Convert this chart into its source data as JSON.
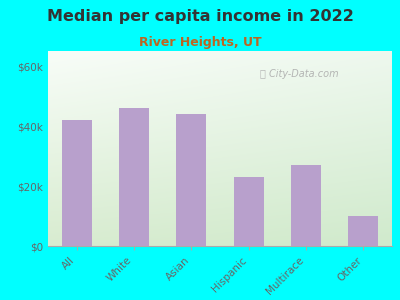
{
  "title": "Median per capita income in 2022",
  "subtitle": "River Heights, UT",
  "categories": [
    "All",
    "White",
    "Asian",
    "Hispanic",
    "Multirace",
    "Other"
  ],
  "values": [
    42000,
    46000,
    44000,
    23000,
    27000,
    10000
  ],
  "bar_color": "#b8a0cc",
  "background_color": "#00ffff",
  "title_color": "#333333",
  "subtitle_color": "#bb6622",
  "axis_color": "#666666",
  "ylabel_ticks": [
    "$0",
    "$20k",
    "$40k",
    "$60k"
  ],
  "ytick_vals": [
    0,
    20000,
    40000,
    60000
  ],
  "ylim": [
    0,
    65000
  ],
  "title_fontsize": 11.5,
  "subtitle_fontsize": 9,
  "tick_fontsize": 7.5,
  "watermark": "City-Data.com",
  "grad_top_left": "#f8fdf8",
  "grad_bottom_right": "#d0eacc"
}
